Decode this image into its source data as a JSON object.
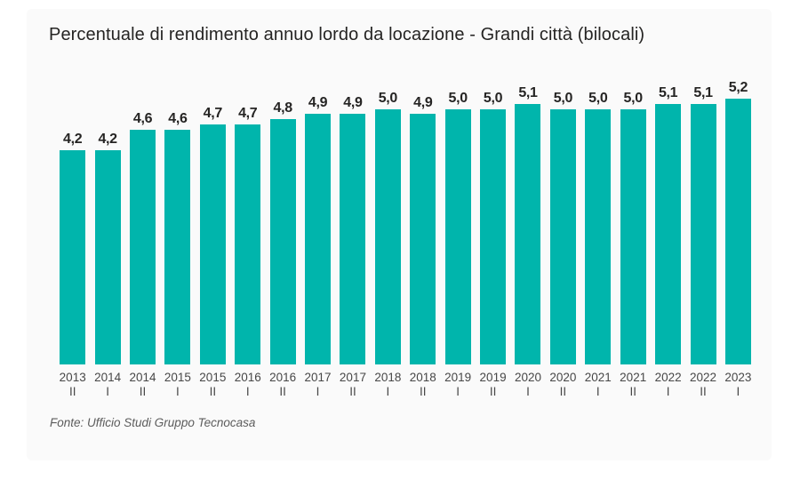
{
  "title": "Percentuale di rendimento annuo lordo da locazione - Grandi città (bilocali)",
  "source": "Fonte: Ufficio Studi Gruppo Tecnocasa",
  "colors": {
    "bar": "#00B5AC",
    "label": "#252423",
    "axis_text": "#474747",
    "panel_background": "#fafafa",
    "page_background": "#ffffff"
  },
  "chart_data": {
    "type": "bar",
    "title": "Percentuale di rendimento annuo lordo da locazione - Grandi città (bilocali)",
    "categories": [
      {
        "year": "2013",
        "semester": "II"
      },
      {
        "year": "2014",
        "semester": "I"
      },
      {
        "year": "2014",
        "semester": "II"
      },
      {
        "year": "2015",
        "semester": "I"
      },
      {
        "year": "2015",
        "semester": "II"
      },
      {
        "year": "2016",
        "semester": "I"
      },
      {
        "year": "2016",
        "semester": "II"
      },
      {
        "year": "2017",
        "semester": "I"
      },
      {
        "year": "2017",
        "semester": "II"
      },
      {
        "year": "2018",
        "semester": "I"
      },
      {
        "year": "2018",
        "semester": "II"
      },
      {
        "year": "2019",
        "semester": "I"
      },
      {
        "year": "2019",
        "semester": "II"
      },
      {
        "year": "2020",
        "semester": "I"
      },
      {
        "year": "2020",
        "semester": "II"
      },
      {
        "year": "2021",
        "semester": "I"
      },
      {
        "year": "2021",
        "semester": "II"
      },
      {
        "year": "2022",
        "semester": "I"
      },
      {
        "year": "2022",
        "semester": "II"
      },
      {
        "year": "2023",
        "semester": "I"
      }
    ],
    "values": [
      4.2,
      4.2,
      4.6,
      4.6,
      4.7,
      4.7,
      4.8,
      4.9,
      4.9,
      5.0,
      4.9,
      5.0,
      5.0,
      5.1,
      5.0,
      5.0,
      5.0,
      5.1,
      5.1,
      5.2
    ],
    "data_labels": [
      "4,2",
      "4,2",
      "4,6",
      "4,6",
      "4,7",
      "4,7",
      "4,8",
      "4,9",
      "4,9",
      "5,0",
      "4,9",
      "5,0",
      "5,0",
      "5,1",
      "5,0",
      "5,0",
      "5,0",
      "5,1",
      "5,1",
      "5,2"
    ],
    "decimal_separator": ",",
    "xlabel": "",
    "ylabel": "",
    "ylim": [
      0,
      5.5
    ],
    "grid": false,
    "legend": false,
    "y_axis_visible": false,
    "data_labels_position": "above-bars"
  }
}
